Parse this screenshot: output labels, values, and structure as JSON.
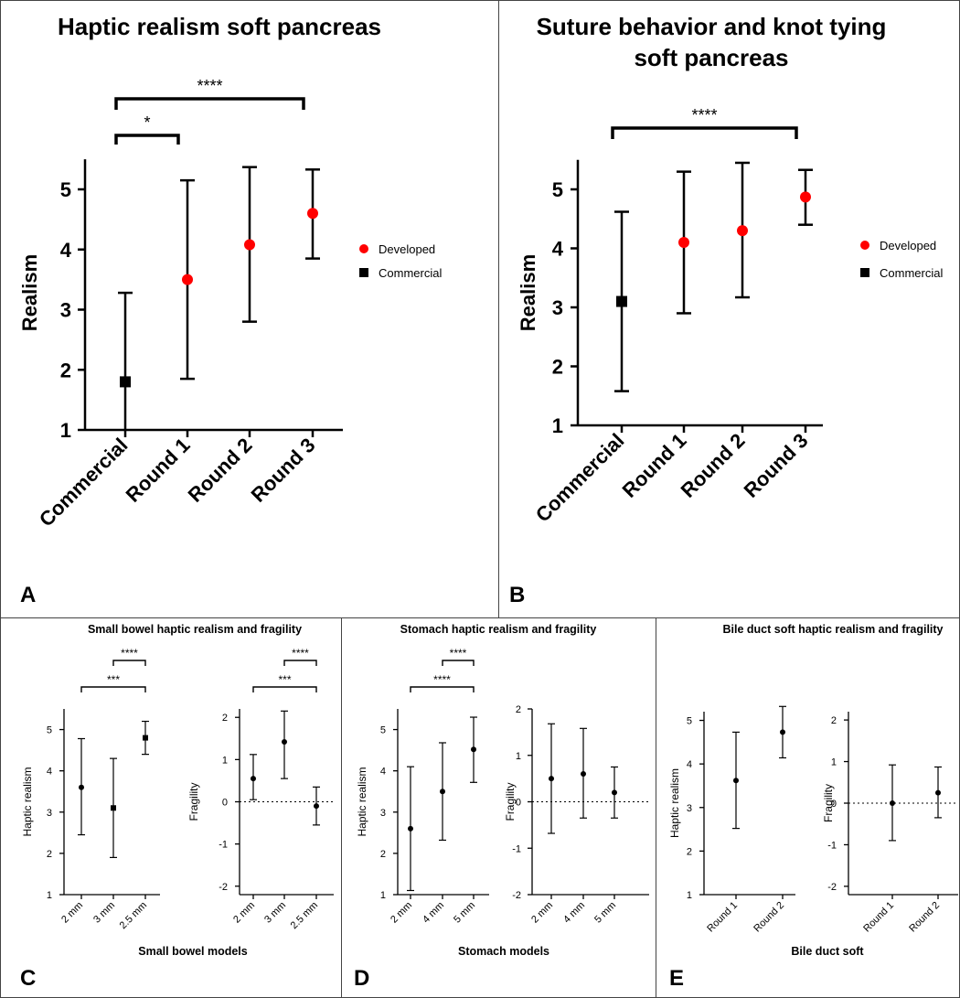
{
  "chart_data": [
    {
      "panel": "A",
      "type": "scatter",
      "title": "Haptic realism soft pancreas",
      "ylabel": "Realism",
      "categories": [
        "Commercial",
        "Round 1",
        "Round 2",
        "Round 3"
      ],
      "ylim": [
        1,
        5.5
      ],
      "yticks": [
        "1",
        "2",
        "3",
        "4",
        "5"
      ],
      "legend": [
        "Developed",
        "Commercial"
      ],
      "points": [
        {
          "x": "Commercial",
          "y": 1.8,
          "low": 0.3,
          "high": 3.28,
          "group": "Commercial"
        },
        {
          "x": "Round 1",
          "y": 3.5,
          "low": 1.85,
          "high": 5.15,
          "group": "Developed"
        },
        {
          "x": "Round 2",
          "y": 4.08,
          "low": 2.8,
          "high": 5.37,
          "group": "Developed"
        },
        {
          "x": "Round 3",
          "y": 4.6,
          "low": 3.85,
          "high": 5.33,
          "group": "Developed"
        }
      ],
      "significance": [
        {
          "from": "Commercial",
          "to": "Round 1",
          "label": "*"
        },
        {
          "from": "Commercial",
          "to": "Round 3",
          "label": "****"
        }
      ]
    },
    {
      "panel": "B",
      "type": "scatter",
      "title": [
        "Suture behavior and knot tying",
        "soft pancreas"
      ],
      "ylabel": "Realism",
      "categories": [
        "Commercial",
        "Round 1",
        "Round 2",
        "Round 3"
      ],
      "ylim": [
        1,
        5.5
      ],
      "yticks": [
        "1",
        "2",
        "3",
        "4",
        "5"
      ],
      "legend": [
        "Developed",
        "Commercial"
      ],
      "points": [
        {
          "x": "Commercial",
          "y": 3.1,
          "low": 1.58,
          "high": 4.62,
          "group": "Commercial"
        },
        {
          "x": "Round 1",
          "y": 4.1,
          "low": 2.9,
          "high": 5.3,
          "group": "Developed"
        },
        {
          "x": "Round 2",
          "y": 4.3,
          "low": 3.17,
          "high": 5.45,
          "group": "Developed"
        },
        {
          "x": "Round 3",
          "y": 4.87,
          "low": 4.4,
          "high": 5.33,
          "group": "Developed"
        }
      ],
      "significance": [
        {
          "from": "Commercial",
          "to": "Round 3",
          "label": "****"
        }
      ]
    },
    {
      "panel": "C",
      "type": "scatter",
      "title": "Small bowel haptic realism and fragility",
      "xlabel": "Small bowel models",
      "subplots": [
        {
          "ylabel": "Haptic realism",
          "categories": [
            "2 mm",
            "3 mm",
            "2.5 mm"
          ],
          "ylim": [
            1,
            5.5
          ],
          "yticks": [
            "1",
            "2",
            "3",
            "4",
            "5"
          ],
          "points": [
            {
              "y": 3.6,
              "low": 2.45,
              "high": 4.78,
              "marker": "circle"
            },
            {
              "y": 3.1,
              "low": 1.9,
              "high": 4.3,
              "marker": "square"
            },
            {
              "y": 4.8,
              "low": 4.4,
              "high": 5.2,
              "marker": "square"
            }
          ],
          "significance": [
            {
              "from": 1,
              "to": 2,
              "label": "****"
            },
            {
              "from": 0,
              "to": 2,
              "label": "***"
            }
          ]
        },
        {
          "ylabel": "Fragility",
          "categories": [
            "2 mm",
            "3 mm",
            "2.5 mm"
          ],
          "ylim": [
            -2.2,
            2.2
          ],
          "yticks": [
            "-2",
            "-1",
            "0",
            "1",
            "2"
          ],
          "zero_line": true,
          "points": [
            {
              "y": 0.55,
              "low": 0.05,
              "high": 1.12
            },
            {
              "y": 1.42,
              "low": 0.55,
              "high": 2.15
            },
            {
              "y": -0.1,
              "low": -0.55,
              "high": 0.35
            }
          ],
          "significance": [
            {
              "from": 1,
              "to": 2,
              "label": "****"
            },
            {
              "from": 0,
              "to": 2,
              "label": "***"
            }
          ]
        }
      ]
    },
    {
      "panel": "D",
      "type": "scatter",
      "title": "Stomach haptic realism and fragility",
      "xlabel": "Stomach models",
      "subplots": [
        {
          "ylabel": "Haptic realism",
          "categories": [
            "2 mm",
            "4 mm",
            "5 mm"
          ],
          "ylim": [
            1,
            5.5
          ],
          "yticks": [
            "1",
            "2",
            "3",
            "4",
            "5"
          ],
          "points": [
            {
              "y": 2.6,
              "low": 1.1,
              "high": 4.1
            },
            {
              "y": 3.5,
              "low": 2.32,
              "high": 4.68
            },
            {
              "y": 4.52,
              "low": 3.72,
              "high": 5.3
            }
          ],
          "significance": [
            {
              "from": 1,
              "to": 2,
              "label": "****"
            },
            {
              "from": 0,
              "to": 2,
              "label": "****"
            }
          ]
        },
        {
          "ylabel": "Fragility",
          "categories": [
            "2 mm",
            "4 mm",
            "5 mm"
          ],
          "ylim": [
            -2,
            2
          ],
          "yticks": [
            "-2",
            "-1",
            "0",
            "1",
            "2"
          ],
          "zero_line": true,
          "points": [
            {
              "y": 0.5,
              "low": -0.68,
              "high": 1.68
            },
            {
              "y": 0.6,
              "low": -0.35,
              "high": 1.58
            },
            {
              "y": 0.2,
              "low": -0.35,
              "high": 0.75
            }
          ],
          "significance": []
        }
      ]
    },
    {
      "panel": "E",
      "type": "scatter",
      "title": "Bile duct soft haptic realism and fragility",
      "xlabel": "Bile duct soft",
      "subplots": [
        {
          "ylabel": "Haptic realism",
          "categories": [
            "Round 1",
            "Round 2"
          ],
          "ylim": [
            1,
            5.2
          ],
          "yticks": [
            "1",
            "2",
            "3",
            "4",
            "5"
          ],
          "points": [
            {
              "y": 3.62,
              "low": 2.52,
              "high": 4.73
            },
            {
              "y": 4.73,
              "low": 4.14,
              "high": 5.32
            }
          ],
          "significance": []
        },
        {
          "ylabel": "Fragility",
          "categories": [
            "Round 1",
            "Round 2"
          ],
          "ylim": [
            -2.2,
            2.2
          ],
          "yticks": [
            "-2",
            "-1",
            "0",
            "1",
            "2"
          ],
          "zero_line": true,
          "points": [
            {
              "y": 0.0,
              "low": -0.9,
              "high": 0.92
            },
            {
              "y": 0.25,
              "low": -0.35,
              "high": 0.87
            }
          ],
          "significance": []
        }
      ]
    }
  ],
  "colors": {
    "developed": "#ff0000",
    "commercial": "#000000",
    "axis": "#000000",
    "frame": "#444444"
  }
}
